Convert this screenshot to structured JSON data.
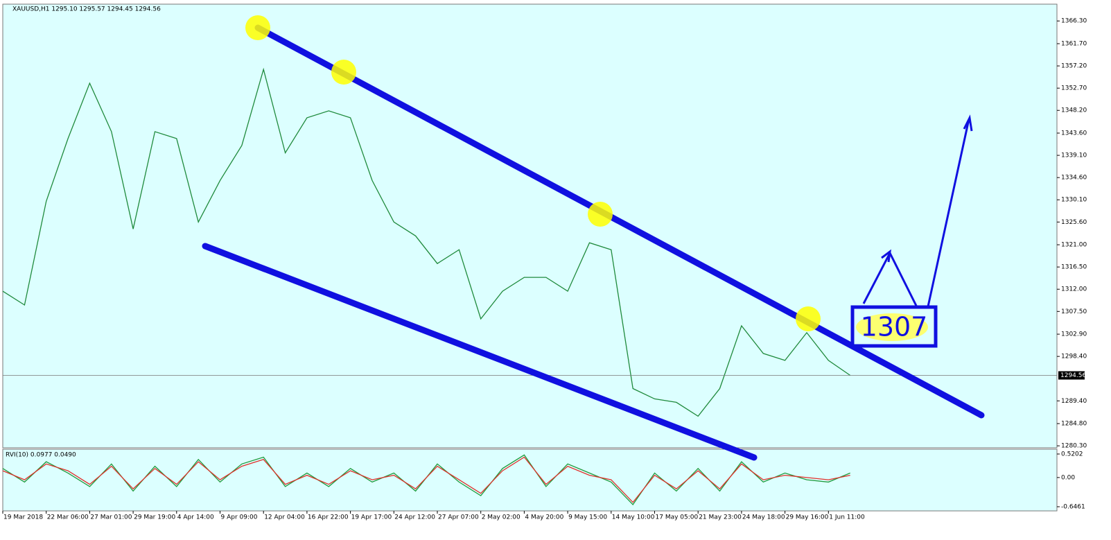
{
  "chart_data": [
    {
      "type": "line",
      "title": "XAUUSD,H1  1295.10 1295.57 1294.45 1294.56",
      "color": "#1f8a3c",
      "categories": [
        "19 Mar 2018",
        null,
        "22 Mar 06:00",
        null,
        "27 Mar 01:00",
        null,
        "29 Mar 19:00",
        null,
        "4 Apr 14:00",
        null,
        "9 Apr 09:00",
        null,
        "12 Apr 04:00",
        null,
        "16 Apr 22:00",
        null,
        "19 Apr 17:00",
        null,
        "24 Apr 12:00",
        null,
        "27 Apr 07:00",
        null,
        "2 May 02:00",
        null,
        "4 May 20:00",
        null,
        "9 May 15:00",
        null,
        "14 May 10:00",
        null,
        "17 May 05:00",
        null,
        "21 May 23:00",
        null,
        "24 May 18:00",
        null,
        "29 May 16:00",
        null,
        "1 Jun 11:00",
        null
      ],
      "values": [
        1311.6,
        1308.8,
        1329.8,
        1342.5,
        1353.7,
        1343.9,
        1324.2,
        1343.9,
        1342.5,
        1325.6,
        1334.0,
        1341.1,
        1356.5,
        1339.6,
        1346.7,
        1348.1,
        1346.7,
        1334.0,
        1325.6,
        1322.8,
        1317.2,
        1320.0,
        1306.0,
        1311.6,
        1314.4,
        1314.4,
        1311.6,
        1321.4,
        1320.0,
        1291.9,
        1289.8,
        1289.1,
        1286.3,
        1291.9,
        1304.6,
        1299.0,
        1297.6,
        1303.2,
        1297.6,
        1294.56
      ],
      "last_price": 1294.56,
      "annotation": "1307",
      "ylim": [
        1279.9,
        1369.7
      ],
      "yticks": [
        {
          "value": 1366.3,
          "label": "1366.30"
        },
        {
          "value": 1361.7,
          "label": "1361.70"
        },
        {
          "value": 1357.2,
          "label": "1357.20"
        },
        {
          "value": 1352.7,
          "label": "1352.70"
        },
        {
          "value": 1348.2,
          "label": "1348.20"
        },
        {
          "value": 1343.6,
          "label": "1343.60"
        },
        {
          "value": 1339.1,
          "label": "1339.10"
        },
        {
          "value": 1334.6,
          "label": "1334.60"
        },
        {
          "value": 1330.1,
          "label": "1330.10"
        },
        {
          "value": 1325.6,
          "label": "1325.60"
        },
        {
          "value": 1321.0,
          "label": "1321.00"
        },
        {
          "value": 1316.5,
          "label": "1316.50"
        },
        {
          "value": 1312.0,
          "label": "1312.00"
        },
        {
          "value": 1307.5,
          "label": "1307.50"
        },
        {
          "value": 1302.9,
          "label": "1302.90"
        },
        {
          "value": 1298.4,
          "label": "1298.40"
        },
        {
          "value": 1289.4,
          "label": "1289.40"
        },
        {
          "value": 1284.8,
          "label": "1284.80"
        },
        {
          "value": 1280.3,
          "label": "1280.30"
        }
      ]
    },
    {
      "type": "line",
      "title": "RVI(10) 0.0977 0.0490",
      "series": [
        {
          "color": "#1f9a3c",
          "values": [
            0.2,
            -0.1,
            0.35,
            0.1,
            -0.2,
            0.3,
            -0.3,
            0.25,
            -0.2,
            0.4,
            -0.1,
            0.3,
            0.45,
            -0.2,
            0.1,
            -0.2,
            0.2,
            -0.1,
            0.1,
            -0.3,
            0.3,
            -0.1,
            -0.4,
            0.2,
            0.5,
            -0.2,
            0.3,
            0.1,
            -0.1,
            -0.6,
            0.1,
            -0.3,
            0.2,
            -0.3,
            0.35,
            -0.1,
            0.1,
            -0.05,
            -0.1,
            0.1
          ]
        },
        {
          "color": "#e0302a",
          "values": [
            0.15,
            -0.05,
            0.3,
            0.15,
            -0.15,
            0.25,
            -0.25,
            0.2,
            -0.15,
            0.35,
            -0.05,
            0.25,
            0.4,
            -0.15,
            0.05,
            -0.15,
            0.15,
            -0.05,
            0.05,
            -0.25,
            0.25,
            -0.05,
            -0.35,
            0.15,
            0.45,
            -0.15,
            0.25,
            0.05,
            -0.05,
            -0.55,
            0.05,
            -0.25,
            0.15,
            -0.25,
            0.3,
            -0.05,
            0.05,
            0.0,
            -0.05,
            0.05
          ]
        }
      ],
      "ylim": [
        -0.738,
        0.627
      ],
      "yticks": [
        0.5202,
        {
          "value": 0,
          "label": "0.00"
        },
        -0.6461
      ]
    }
  ]
}
